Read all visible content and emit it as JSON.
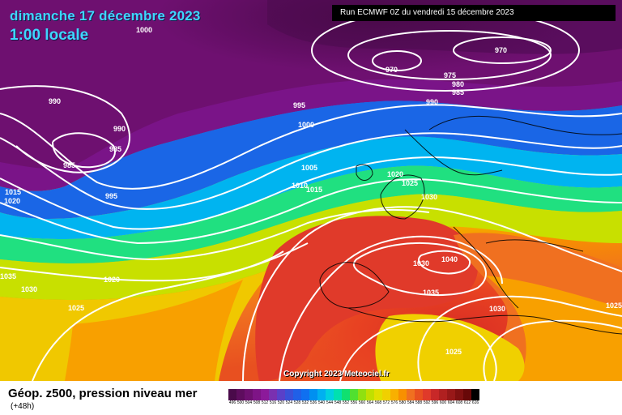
{
  "header": {
    "date": "dimanche 17 décembre 2023",
    "time": "1:00 locale",
    "run": "Run ECMWF 0Z du vendredi 15 décembre 2023"
  },
  "copyright": "Copyright 2023 Meteociel.fr",
  "footer": {
    "title": "Géop. z500, pression niveau mer",
    "subtitle": "(+48h)"
  },
  "pressure_labels": [
    "1000",
    "990",
    "990",
    "985",
    "985",
    "995",
    "995",
    "1000",
    "1005",
    "1010",
    "1015",
    "1015",
    "1020",
    "1020",
    "1025",
    "1030",
    "1030",
    "1035",
    "1040",
    "1035",
    "1030",
    "1025",
    "1025",
    "1020",
    "1030",
    "1025",
    "970",
    "975",
    "980",
    "985",
    "990",
    "970"
  ],
  "legend_scale": [
    "496",
    "500",
    "504",
    "508",
    "512",
    "516",
    "520",
    "524",
    "528",
    "532",
    "536",
    "540",
    "544",
    "548",
    "552",
    "556",
    "560",
    "564",
    "568",
    "572",
    "576",
    "580",
    "584",
    "588",
    "592",
    "596",
    "600",
    "604",
    "608",
    "612",
    "616"
  ],
  "legend_colors": [
    "#4a0a4a",
    "#5e0d5e",
    "#6e1070",
    "#7e1486",
    "#8c1a9a",
    "#7a30b0",
    "#5a40c8",
    "#3a50d8",
    "#2060e8",
    "#1070f0",
    "#0090f0",
    "#00b0f0",
    "#00d0e0",
    "#00e0b0",
    "#10e070",
    "#50e030",
    "#90e010",
    "#c0e000",
    "#e0e000",
    "#f0d000",
    "#f8b000",
    "#f89000",
    "#f07020",
    "#e85020",
    "#e03a2a",
    "#c82828",
    "#b02020",
    "#981818",
    "#801010",
    "#680808",
    "#000000"
  ],
  "colors": {
    "contour": "#ffffff",
    "title_cyan": "#3fd6ff"
  }
}
